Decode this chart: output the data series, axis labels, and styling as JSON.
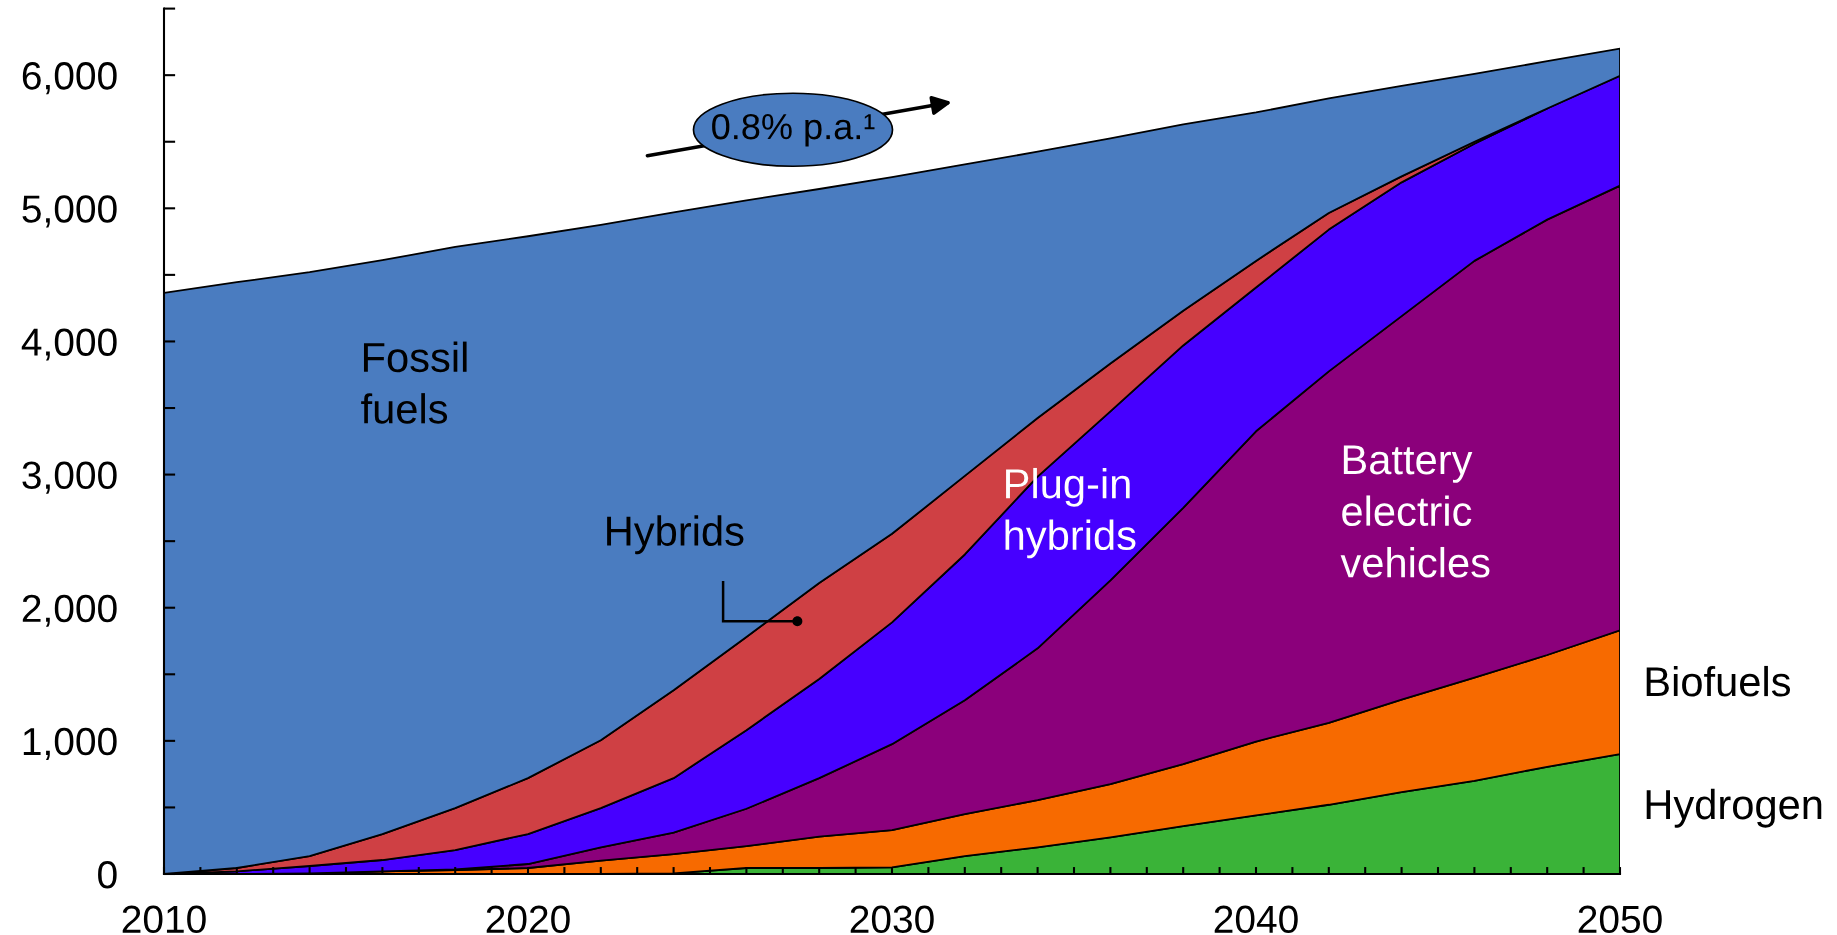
{
  "chart_data": {
    "type": "area",
    "stacked": true,
    "x": [
      2010,
      2012,
      2014,
      2016,
      2018,
      2020,
      2022,
      2024,
      2026,
      2028,
      2030,
      2032,
      2034,
      2036,
      2038,
      2040,
      2042,
      2044,
      2046,
      2048,
      2050
    ],
    "series": [
      {
        "name": "Hydrogen",
        "color": "#3ab338",
        "values": [
          0,
          0,
          0,
          0,
          0,
          0,
          0,
          5,
          45,
          45,
          50,
          135,
          200,
          275,
          360,
          440,
          520,
          615,
          700,
          805,
          900
        ]
      },
      {
        "name": "Biofuels",
        "color": "#f76a00",
        "values": [
          0,
          0,
          5,
          20,
          30,
          45,
          100,
          145,
          165,
          235,
          280,
          315,
          355,
          400,
          465,
          555,
          615,
          695,
          775,
          840,
          930
        ]
      },
      {
        "name": "Battery\nelectric\nvehicles",
        "color": "#8b007b",
        "values": [
          0,
          0,
          0,
          0,
          5,
          30,
          100,
          160,
          280,
          440,
          645,
          855,
          1140,
          1530,
          1925,
          2330,
          2640,
          2880,
          3130,
          3270,
          3340
        ]
      },
      {
        "name": "Plug-in\nhybrids",
        "color": "#4600ff",
        "values": [
          0,
          20,
          55,
          85,
          145,
          225,
          295,
          410,
          590,
          745,
          915,
          1095,
          1290,
          1270,
          1220,
          1080,
          1065,
          1005,
          880,
          835,
          825
        ]
      },
      {
        "name": "Hybrids",
        "color": "#cf4044",
        "values": [
          0,
          25,
          75,
          195,
          315,
          420,
          510,
          660,
          700,
          720,
          665,
          590,
          440,
          360,
          260,
          200,
          125,
          45,
          15,
          0,
          null
        ]
      },
      {
        "name": "Fossil\nfuels",
        "color": "#4a7cc0",
        "values": [
          4365,
          4400,
          4385,
          4310,
          4215,
          4070,
          3870,
          3590,
          3280,
          2960,
          2680,
          2340,
          2000,
          1690,
          1400,
          1115,
          860,
          680,
          510,
          355,
          205
        ]
      }
    ],
    "xlim": [
      2010,
      2050
    ],
    "xticks": [
      2010,
      {
        "value": 2011,
        "label": null
      },
      {
        "value": 2012,
        "label": null
      },
      {
        "value": 2013,
        "label": null
      },
      {
        "value": 2014,
        "label": null
      },
      {
        "value": 2015,
        "label": null
      },
      {
        "value": 2016,
        "label": null
      },
      {
        "value": 2017,
        "label": null
      },
      {
        "value": 2018,
        "label": null
      },
      {
        "value": 2019,
        "label": null
      },
      2020,
      {
        "value": 2021,
        "label": null
      },
      {
        "value": 2022,
        "label": null
      },
      {
        "value": 2023,
        "label": null
      },
      {
        "value": 2024,
        "label": null
      },
      {
        "value": 2025,
        "label": null
      },
      {
        "value": 2026,
        "label": null
      },
      {
        "value": 2027,
        "label": null
      },
      {
        "value": 2028,
        "label": null
      },
      {
        "value": 2029,
        "label": null
      },
      2030,
      {
        "value": 2031,
        "label": null
      },
      {
        "value": 2032,
        "label": null
      },
      {
        "value": 2033,
        "label": null
      },
      {
        "value": 2034,
        "label": null
      },
      {
        "value": 2035,
        "label": null
      },
      {
        "value": 2036,
        "label": null
      },
      {
        "value": 2037,
        "label": null
      },
      {
        "value": 2038,
        "label": null
      },
      {
        "value": 2039,
        "label": null
      },
      2040,
      {
        "value": 2041,
        "label": null
      },
      {
        "value": 2042,
        "label": null
      },
      {
        "value": 2043,
        "label": null
      },
      {
        "value": 2044,
        "label": null
      },
      {
        "value": 2045,
        "label": null
      },
      {
        "value": 2046,
        "label": null
      },
      {
        "value": 2047,
        "label": null
      },
      {
        "value": 2048,
        "label": null
      },
      {
        "value": 2049,
        "label": null
      },
      2050
    ],
    "ylim": [
      0,
      6500
    ],
    "yticks": [
      0,
      {
        "value": 500,
        "label": null
      },
      {
        "value": 1000,
        "label": "1,000"
      },
      {
        "value": 1500,
        "label": null
      },
      {
        "value": 2000,
        "label": "2,000"
      },
      {
        "value": 2500,
        "label": null
      },
      {
        "value": 3000,
        "label": "3,000"
      },
      {
        "value": 3500,
        "label": null
      },
      {
        "value": 4000,
        "label": "4,000"
      },
      {
        "value": 4500,
        "label": null
      },
      {
        "value": 5000,
        "label": "5,000"
      },
      {
        "value": 5500,
        "label": null
      },
      {
        "value": 6000,
        "label": "6,000"
      },
      {
        "value": 6500,
        "label": null
      }
    ],
    "annotations": [
      "0.8% p.a.¹"
    ]
  }
}
